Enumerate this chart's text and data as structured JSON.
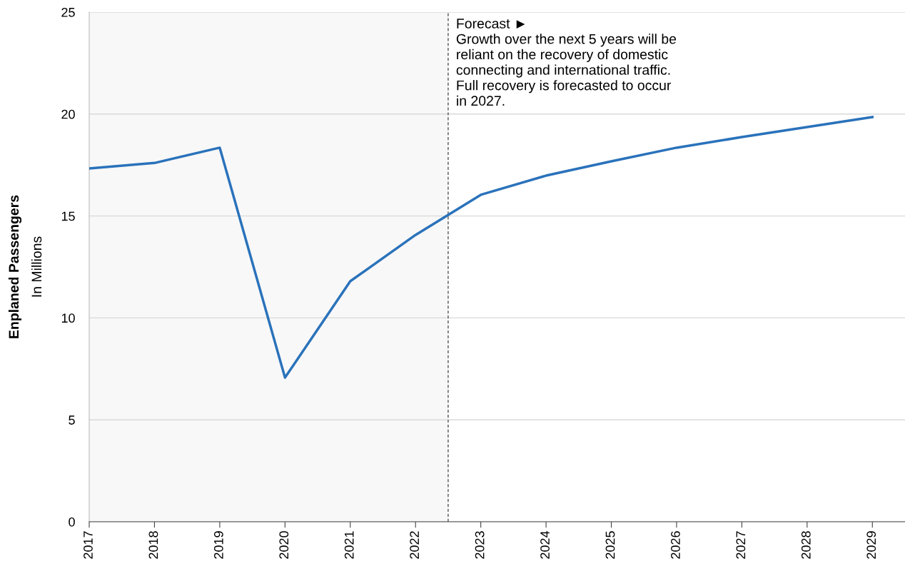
{
  "chart_data": {
    "type": "line",
    "ylabel": "Enplaned Passengers",
    "annotations": [
      "In Millions",
      "Forecast ►\nGrowth over the next 5 years will be\nreliant on the recovery of domestic\nconnecting and international traffic.\nFull recovery is forecasted to occur\nin 2027."
    ],
    "x": [
      2017,
      2018,
      2019,
      2020,
      2021,
      2022,
      2023,
      2024,
      2025,
      2026,
      2027,
      2028,
      2029
    ],
    "series": [
      {
        "color": "#2a72bb",
        "values": [
          17.33,
          17.6,
          18.35,
          7.07,
          11.8,
          14.07,
          16.04,
          16.98,
          17.68,
          18.35,
          18.87,
          19.36,
          19.85
        ]
      }
    ],
    "xlim": [
      2017,
      2029.5
    ],
    "xticks": [
      2017,
      2018,
      2019,
      2020,
      2021,
      2022,
      2023,
      2024,
      2025,
      2026,
      2027,
      2028,
      2029
    ],
    "ylim": [
      0,
      25
    ],
    "yticks": [
      0,
      5,
      10,
      15,
      20,
      25
    ],
    "ref_lines": [
      {
        "axis": "x",
        "value": 2022.5,
        "color": "#555555",
        "line_style": "dashed"
      }
    ],
    "bands": [
      {
        "axis": "x",
        "from": 2017,
        "to": 2022.5,
        "color": "#f8f8f8"
      }
    ],
    "grid": "y",
    "marker": "none",
    "line_style": "solid"
  }
}
